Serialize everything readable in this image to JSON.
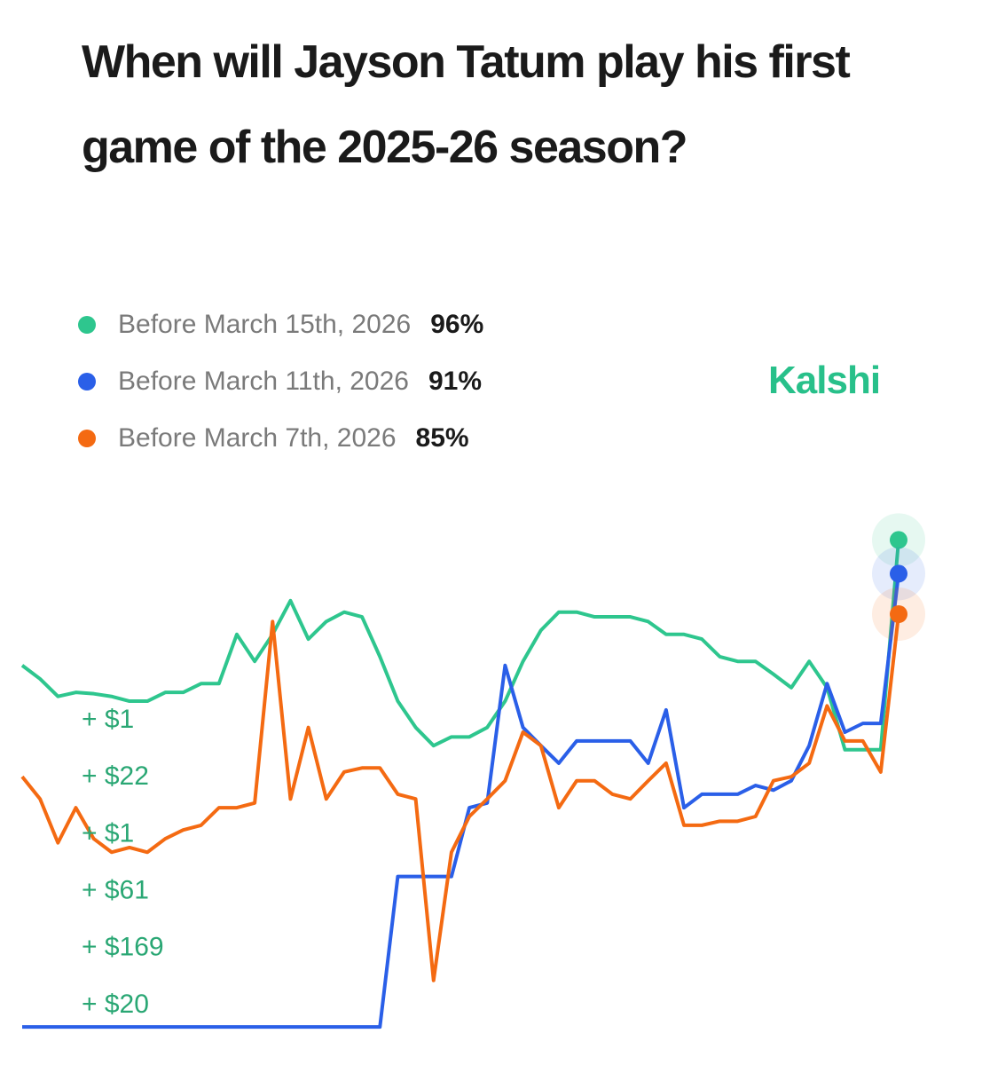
{
  "title": "When will Jayson Tatum play his first game of the 2025-26 season?",
  "brand": "Kalshi",
  "trades": [
    "+ $1",
    "+ $22",
    "+ $1",
    "+ $61",
    "+ $169",
    "+ $20"
  ],
  "chart_data": {
    "type": "line",
    "series": [
      {
        "name": "Before March 15th, 2026",
        "color": "#2ec68e",
        "current_value": 96,
        "current_label": "96%",
        "values": [
          77.4,
          75.4,
          72.8,
          73.4,
          73.2,
          72.8,
          72.1,
          72.1,
          73.4,
          73.4,
          74.7,
          74.7,
          82.0,
          78.0,
          82.0,
          87.0,
          81.3,
          83.9,
          85.3,
          84.6,
          78.7,
          72.1,
          68.2,
          65.5,
          66.8,
          66.8,
          68.2,
          72.1,
          78.0,
          82.6,
          85.3,
          85.3,
          84.6,
          84.6,
          84.6,
          83.9,
          82.0,
          82.0,
          81.3,
          78.7,
          78.0,
          78.0,
          76.1,
          74.1,
          78.0,
          74.1,
          64.9,
          64.9,
          64.9,
          96
        ]
      },
      {
        "name": "Before March 11th, 2026",
        "color": "#2a5fe8",
        "current_value": 91,
        "current_label": "91%",
        "values": [
          23.8,
          23.8,
          23.8,
          23.8,
          23.8,
          23.8,
          23.8,
          23.8,
          23.8,
          23.8,
          23.8,
          23.8,
          23.8,
          23.8,
          23.8,
          23.8,
          23.8,
          23.8,
          23.8,
          23.8,
          23.8,
          46.1,
          46.1,
          46.1,
          46.1,
          56.3,
          57.0,
          77.4,
          68.2,
          65.5,
          62.9,
          66.2,
          66.2,
          66.2,
          66.2,
          62.9,
          70.8,
          56.3,
          58.3,
          58.3,
          58.3,
          59.6,
          58.9,
          60.3,
          65.5,
          74.7,
          67.5,
          68.8,
          68.8,
          91
        ]
      },
      {
        "name": "Before March 7th, 2026",
        "color": "#f46a12",
        "current_value": 85,
        "current_label": "85%",
        "values": [
          60.9,
          57.6,
          51.1,
          56.3,
          51.7,
          49.7,
          50.4,
          49.7,
          51.7,
          53.0,
          53.7,
          56.3,
          56.3,
          57.0,
          83.9,
          57.6,
          68.2,
          57.6,
          61.6,
          62.2,
          62.2,
          58.3,
          57.6,
          30.7,
          49.7,
          55.0,
          57.6,
          60.3,
          67.5,
          65.5,
          56.3,
          60.3,
          60.3,
          58.3,
          57.6,
          60.3,
          62.9,
          53.7,
          53.7,
          54.3,
          54.3,
          55.0,
          60.3,
          60.9,
          62.9,
          71.4,
          66.2,
          66.2,
          61.6,
          85
        ]
      }
    ]
  }
}
